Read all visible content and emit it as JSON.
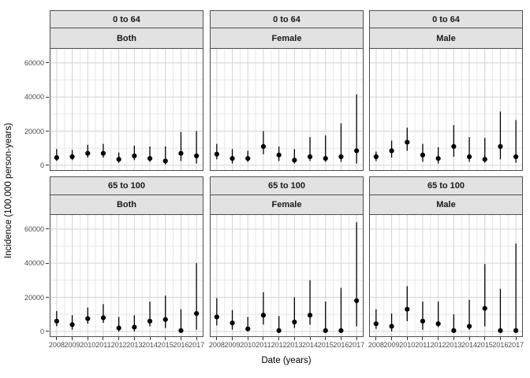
{
  "colors": {
    "point": "#000000",
    "error_bar": "#000000",
    "grid_major": "#d4d4d4",
    "grid_minor": "#e8e8e8",
    "panel_border": "#4d4d4d",
    "strip_background": "#e2e2e2",
    "tick_text": "#4d4d4d",
    "background": "#ffffff"
  },
  "chart_data": {
    "type": "scatter",
    "subtype": "pointrange-with-error-bars",
    "title": "",
    "xlabel": "Date (years)",
    "ylabel": "Incidence (100,000 person-years)",
    "x": [
      2008,
      2009,
      2010,
      2011,
      2012,
      2013,
      2014,
      2015,
      2016,
      2017
    ],
    "x_tick_labels": [
      "2008",
      "2009",
      "2010",
      "2011",
      "2012",
      "2013",
      "2014",
      "2015",
      "2016",
      "2017"
    ],
    "y_ticks": [
      {
        "v": 0,
        "label": "0"
      },
      {
        "v": 20000,
        "label": "20000"
      },
      {
        "v": 40000,
        "label": "40000"
      },
      {
        "v": 60000,
        "label": "60000"
      }
    ],
    "y_minor_ticks": [
      10000,
      30000,
      50000
    ],
    "xlim": [
      2007.55,
      2017.45
    ],
    "ylim": [
      -3300,
      68700
    ],
    "grid": "major+minor",
    "legend": "none",
    "facet_rows": [
      "0 to 64",
      "65 to 100"
    ],
    "facet_cols": [
      "Both",
      "Female",
      "Male"
    ],
    "panels": [
      {
        "facet_row": "0 to 64",
        "facet_col": "Both",
        "y": [
          4500,
          5000,
          7000,
          7000,
          3500,
          5500,
          4000,
          2500,
          7000,
          5500
        ],
        "ymin": [
          2500,
          3000,
          4500,
          4500,
          1500,
          3000,
          2000,
          500,
          2500,
          1000
        ],
        "ymax": [
          9500,
          9000,
          12000,
          12500,
          7500,
          11500,
          11000,
          11000,
          19500,
          20000
        ]
      },
      {
        "facet_row": "0 to 64",
        "facet_col": "Female",
        "y": [
          6500,
          4000,
          4000,
          11000,
          6000,
          3000,
          5000,
          4000,
          5000,
          8500
        ],
        "ymin": [
          3500,
          1000,
          2000,
          6500,
          2500,
          1000,
          2500,
          2000,
          2000,
          1000
        ],
        "ymax": [
          12500,
          9500,
          8500,
          20000,
          11000,
          9500,
          16500,
          17500,
          24500,
          41500
        ]
      },
      {
        "facet_row": "0 to 64",
        "facet_col": "Male",
        "y": [
          5000,
          8500,
          13500,
          6000,
          4000,
          11000,
          5000,
          3500,
          11000,
          5000
        ],
        "ymin": [
          2500,
          4500,
          8500,
          2000,
          1000,
          5000,
          2000,
          1500,
          3500,
          1500
        ],
        "ymax": [
          8000,
          14500,
          22000,
          12500,
          10500,
          23500,
          16500,
          16000,
          31500,
          26500
        ]
      },
      {
        "facet_row": "65 to 100",
        "facet_col": "Both",
        "y": [
          6000,
          4000,
          7500,
          8000,
          2000,
          2500,
          6000,
          7000,
          500,
          10500
        ],
        "ymin": [
          3000,
          1000,
          4500,
          5000,
          0,
          0,
          3000,
          2000,
          0,
          1000
        ],
        "ymax": [
          12000,
          9500,
          14000,
          16000,
          8500,
          9500,
          17500,
          21000,
          13000,
          40000
        ]
      },
      {
        "facet_row": "65 to 100",
        "facet_col": "Female",
        "y": [
          8500,
          5000,
          1500,
          9500,
          500,
          5500,
          9500,
          500,
          500,
          18000
        ],
        "ymin": [
          3500,
          1000,
          0,
          4000,
          0,
          2000,
          4000,
          0,
          0,
          3000
        ],
        "ymax": [
          19500,
          12500,
          8500,
          23000,
          9000,
          20000,
          30000,
          17500,
          25500,
          64000
        ]
      },
      {
        "facet_row": "65 to 100",
        "facet_col": "Male",
        "y": [
          4500,
          3000,
          13000,
          6000,
          4500,
          500,
          3000,
          13500,
          500,
          500
        ],
        "ymin": [
          1500,
          0,
          6000,
          1000,
          2500,
          0,
          1000,
          3000,
          0,
          0
        ],
        "ymax": [
          13000,
          10500,
          26500,
          17500,
          17500,
          10000,
          18500,
          39500,
          25000,
          51500
        ]
      }
    ]
  }
}
